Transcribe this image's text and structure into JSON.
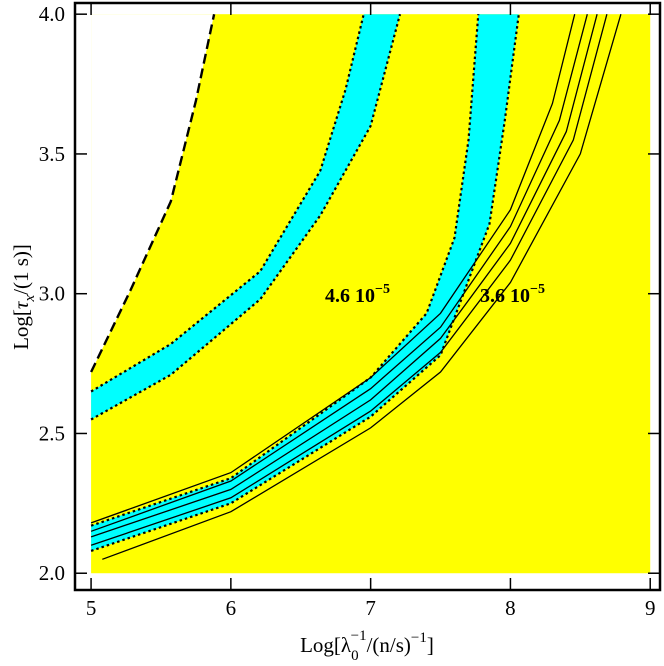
{
  "chart_data": {
    "type": "contour",
    "xlim": [
      4.885,
      9.07
    ],
    "ylim": [
      1.94,
      4.04
    ],
    "xticks": [
      5,
      6,
      7,
      8,
      9
    ],
    "yticks": [
      {
        "value": 2,
        "label": "2.0"
      },
      {
        "value": 2.5,
        "label": "2.5"
      },
      {
        "value": 3,
        "label": "3.0"
      },
      {
        "value": 3.5,
        "label": "3.5"
      },
      {
        "value": 4,
        "label": "4.0"
      }
    ],
    "x_label": [
      "Log[λ",
      "0",
      "−1",
      "/(n/s)",
      "−1",
      "]"
    ],
    "y_label": [
      "Log[",
      "τ",
      "x",
      "/(1 s)]"
    ],
    "region": {
      "color": "#ffff00",
      "x": [
        5,
        9
      ],
      "y": [
        2,
        4
      ]
    },
    "boundary": {
      "color": "#000000",
      "x": [
        5,
        5.28,
        5.57,
        5.75,
        5.88
      ],
      "y": [
        2.72,
        3.01,
        3.33,
        3.69,
        4.0
      ]
    },
    "bands": [
      {
        "color": "#00ffff",
        "upper": {
          "x": [
            5,
            5.57,
            6.21,
            6.64,
            6.82,
            6.95
          ],
          "y": [
            2.65,
            2.82,
            3.08,
            3.44,
            3.73,
            4.0
          ]
        },
        "lower": {
          "x": [
            5,
            5.57,
            6.21,
            6.64,
            7.0,
            7.21
          ],
          "y": [
            2.55,
            2.71,
            2.98,
            3.28,
            3.6,
            4.0
          ]
        }
      },
      {
        "color": "#00ffff",
        "upper": {
          "x": [
            5,
            6,
            7,
            7.4,
            7.6,
            7.7,
            7.77
          ],
          "y": [
            2.17,
            2.34,
            2.7,
            2.93,
            3.2,
            3.55,
            4.0
          ]
        },
        "lower": {
          "x": [
            5,
            6,
            7,
            7.5,
            7.85,
            7.96,
            8.06
          ],
          "y": [
            2.08,
            2.25,
            2.56,
            2.78,
            3.25,
            3.62,
            4.0
          ]
        }
      }
    ],
    "contours": [
      {
        "x": [
          5,
          6,
          7,
          7.5,
          8,
          8.3,
          8.46
        ],
        "y": [
          2.18,
          2.36,
          2.7,
          2.93,
          3.3,
          3.68,
          4.0
        ]
      },
      {
        "x": [
          5,
          6,
          7,
          7.5,
          8,
          8.35,
          8.55
        ],
        "y": [
          2.15,
          2.33,
          2.66,
          2.88,
          3.24,
          3.62,
          4.0
        ]
      },
      {
        "x": [
          5,
          6,
          7,
          7.5,
          8,
          8.4,
          8.62
        ],
        "y": [
          2.13,
          2.3,
          2.62,
          2.84,
          3.18,
          3.58,
          4.0
        ]
      },
      {
        "x": [
          5,
          6,
          7,
          7.5,
          8,
          8.45,
          8.69
        ],
        "y": [
          2.1,
          2.27,
          2.58,
          2.79,
          3.12,
          3.55,
          4.0
        ]
      },
      {
        "x": [
          5.08,
          6,
          7,
          7.5,
          8,
          8.5,
          8.79
        ],
        "y": [
          2.05,
          2.22,
          2.52,
          2.72,
          3.04,
          3.5,
          4.0
        ]
      }
    ],
    "annotations": [
      {
        "text": "4.6 10",
        "exponent": "−5"
      },
      {
        "text": "3.6 10",
        "exponent": "−5"
      }
    ]
  }
}
